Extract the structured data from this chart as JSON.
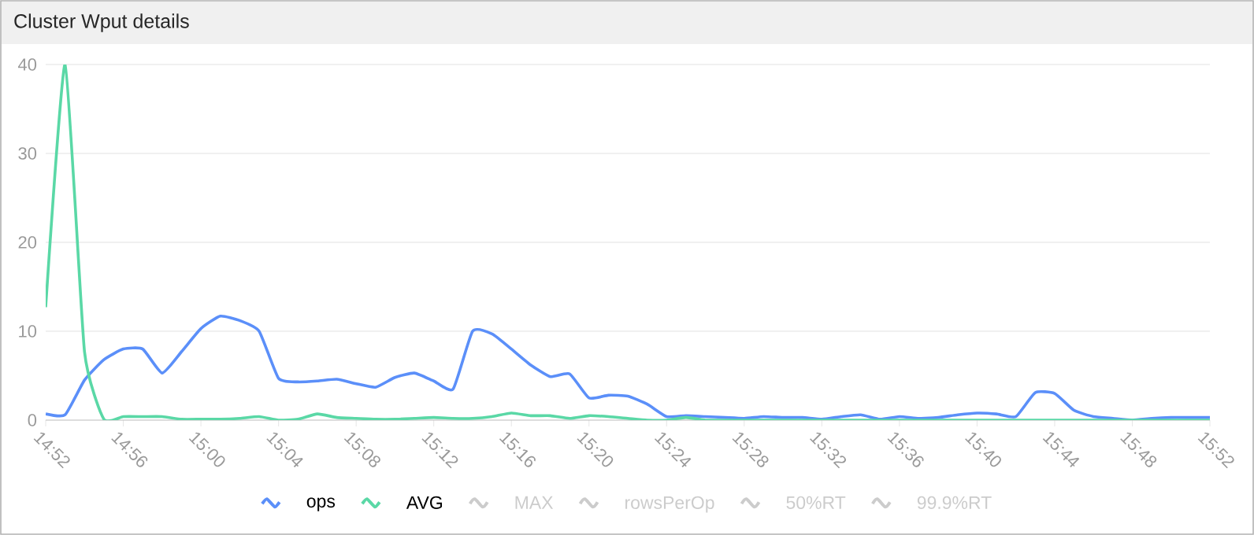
{
  "chart_data": {
    "type": "line",
    "title": "Cluster Wput details",
    "categories": [
      "14:52",
      null,
      null,
      null,
      "14:56",
      null,
      null,
      null,
      "15:00",
      null,
      null,
      null,
      "15:04",
      null,
      null,
      null,
      "15:08",
      null,
      null,
      null,
      "15:12",
      null,
      null,
      null,
      "15:16",
      null,
      null,
      null,
      "15:20",
      null,
      null,
      null,
      "15:24",
      null,
      null,
      null,
      "15:28",
      null,
      null,
      null,
      "15:32",
      null,
      null,
      null,
      "15:36",
      null,
      null,
      null,
      "15:40",
      null,
      null,
      null,
      "15:44",
      null,
      null,
      null,
      "15:48",
      null,
      null,
      null,
      "15:52"
    ],
    "ylim": [
      0,
      40
    ],
    "yticks": [
      0,
      10,
      20,
      30,
      40
    ],
    "grid": "y",
    "legend": "bottom",
    "marker": "none",
    "line_style": "solid",
    "series": [
      {
        "name": "ops",
        "color": "#5b8ff9",
        "values": [
          0.7,
          0.6,
          4.5,
          6.8,
          8.0,
          8.0,
          5.3,
          7.7,
          10.3,
          11.7,
          11.2,
          10.0,
          4.7,
          4.3,
          4.4,
          4.6,
          4.1,
          3.7,
          4.8,
          5.3,
          4.4,
          3.5,
          10.0,
          9.7,
          8.0,
          6.2,
          4.9,
          5.2,
          2.5,
          2.8,
          2.7,
          1.8,
          0.4,
          0.5,
          0.4,
          0.3,
          0.2,
          0.4,
          0.3,
          0.3,
          0.1,
          0.4,
          0.6,
          0.1,
          0.4,
          0.2,
          0.3,
          0.6,
          0.8,
          0.7,
          0.4,
          3.1,
          3.0,
          1.1,
          0.4,
          0.2,
          0,
          0.2,
          0.3,
          0.3,
          0.3
        ]
      },
      {
        "name": "AVG",
        "color": "#5ad8a6",
        "values": [
          12.7,
          40,
          7.7,
          0.1,
          0.4,
          0.4,
          0.4,
          0.1,
          0.1,
          0.1,
          0.2,
          0.4,
          0,
          0.1,
          0.7,
          0.3,
          0.2,
          0.1,
          0.1,
          0.2,
          0.3,
          0.2,
          0.2,
          0.4,
          0.8,
          0.5,
          0.5,
          0.2,
          0.5,
          0.4,
          0.2,
          0,
          0,
          0.3,
          0,
          0,
          0,
          0,
          0,
          0,
          0,
          0,
          0,
          0,
          0,
          0,
          0,
          0,
          0,
          0,
          0,
          0,
          0,
          0,
          0,
          0,
          0,
          0,
          0,
          0,
          0
        ]
      },
      {
        "name": "MAX",
        "color": "#cccccc",
        "values": [
          null,
          null,
          null,
          null,
          null,
          null,
          null,
          null,
          null,
          null,
          null,
          null,
          null,
          null,
          null,
          null,
          null,
          null,
          null,
          null,
          null,
          null,
          null,
          null,
          null,
          null,
          null,
          null,
          null,
          null,
          null,
          null,
          null,
          null,
          null,
          null,
          null,
          null,
          null,
          null,
          null,
          null,
          null,
          null,
          null,
          null,
          null,
          null,
          null,
          null,
          null,
          null,
          null,
          null,
          null,
          null,
          null,
          null,
          null,
          null,
          null
        ]
      },
      {
        "name": "rowsPerOp",
        "color": "#cccccc",
        "values": [
          null,
          null,
          null,
          null,
          null,
          null,
          null,
          null,
          null,
          null,
          null,
          null,
          null,
          null,
          null,
          null,
          null,
          null,
          null,
          null,
          null,
          null,
          null,
          null,
          null,
          null,
          null,
          null,
          null,
          null,
          null,
          null,
          null,
          null,
          null,
          null,
          null,
          null,
          null,
          null,
          null,
          null,
          null,
          null,
          null,
          null,
          null,
          null,
          null,
          null,
          null,
          null,
          null,
          null,
          null,
          null,
          null,
          null,
          null,
          null,
          null
        ]
      },
      {
        "name": "50%RT",
        "color": "#cccccc",
        "values": [
          null,
          null,
          null,
          null,
          null,
          null,
          null,
          null,
          null,
          null,
          null,
          null,
          null,
          null,
          null,
          null,
          null,
          null,
          null,
          null,
          null,
          null,
          null,
          null,
          null,
          null,
          null,
          null,
          null,
          null,
          null,
          null,
          null,
          null,
          null,
          null,
          null,
          null,
          null,
          null,
          null,
          null,
          null,
          null,
          null,
          null,
          null,
          null,
          null,
          null,
          null,
          null,
          null,
          null,
          null,
          null,
          null,
          null,
          null,
          null,
          null
        ]
      },
      {
        "name": "99.9%RT",
        "color": "#cccccc",
        "values": [
          null,
          null,
          null,
          null,
          null,
          null,
          null,
          null,
          null,
          null,
          null,
          null,
          null,
          null,
          null,
          null,
          null,
          null,
          null,
          null,
          null,
          null,
          null,
          null,
          null,
          null,
          null,
          null,
          null,
          null,
          null,
          null,
          null,
          null,
          null,
          null,
          null,
          null,
          null,
          null,
          null,
          null,
          null,
          null,
          null,
          null,
          null,
          null,
          null,
          null,
          null,
          null,
          null,
          null,
          null,
          null,
          null,
          null,
          null,
          null,
          null
        ]
      }
    ]
  }
}
